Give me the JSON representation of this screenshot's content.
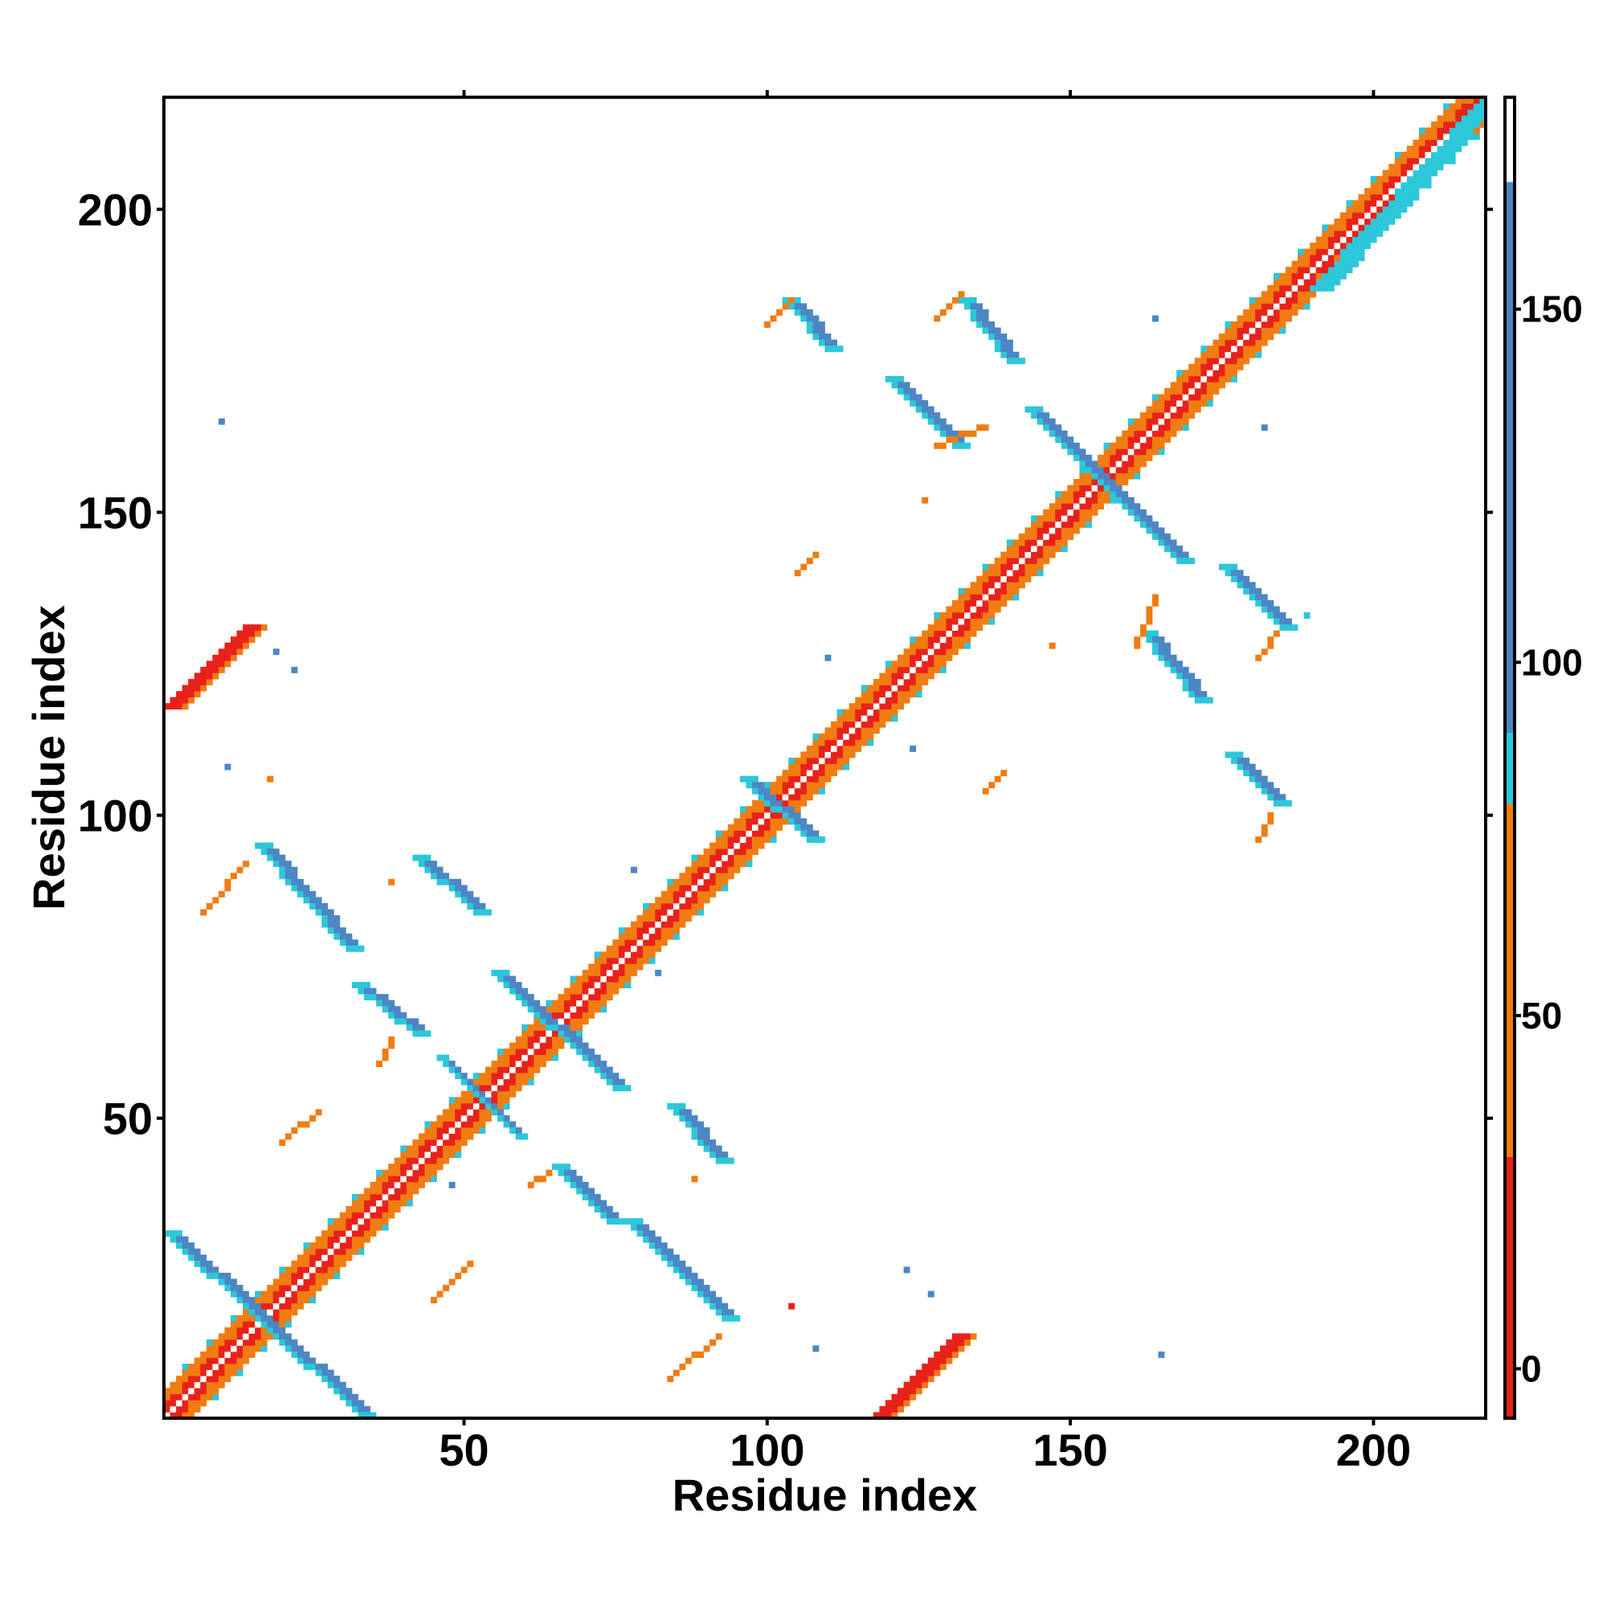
{
  "chart_data": {
    "type": "heatmap",
    "title": "",
    "xlabel": "Residue index",
    "ylabel": "Residue index",
    "xlim": [
      1,
      218
    ],
    "ylim": [
      1,
      218
    ],
    "x_ticks": [
      "50",
      "100",
      "150",
      "200"
    ],
    "y_ticks": [
      "50",
      "100",
      "150",
      "200"
    ],
    "x_tick_values": [
      50,
      100,
      150,
      200
    ],
    "y_tick_values": [
      50,
      100,
      150,
      200
    ],
    "colorbar": {
      "range": [
        -7,
        180
      ],
      "ticks": [
        "0",
        "50",
        "100",
        "150"
      ],
      "tick_values": [
        0,
        50,
        100,
        150
      ],
      "segments": [
        {
          "from": -7,
          "to": 30,
          "color": "#e8221a"
        },
        {
          "from": 30,
          "to": 80,
          "color": "#f07c12"
        },
        {
          "from": 80,
          "to": 90,
          "color": "#2cc7d9"
        },
        {
          "from": 90,
          "to": 168,
          "color": "#4d86c4"
        },
        {
          "from": 168,
          "to": 180,
          "color": "#ffffff"
        }
      ]
    },
    "colors": {
      "red": "#e8221a",
      "orange": "#f07c12",
      "cyan": "#2cc7d9",
      "blue": "#4d86c4"
    },
    "features": [
      {
        "kind": "diagonal",
        "from": 1,
        "to": 218
      },
      {
        "kind": "band",
        "x1": 1,
        "y1": 31,
        "x2": 33,
        "y2": 1,
        "color": "blue",
        "width": 3
      },
      {
        "kind": "band",
        "x1": 16,
        "y1": 95,
        "x2": 31,
        "y2": 78,
        "color": "blue",
        "width": 3
      },
      {
        "kind": "band",
        "x1": 32,
        "y1": 72,
        "x2": 42,
        "y2": 64,
        "color": "blue",
        "width": 3
      },
      {
        "kind": "band",
        "x1": 42,
        "y1": 93,
        "x2": 52,
        "y2": 84,
        "color": "blue",
        "width": 3
      },
      {
        "kind": "band",
        "x1": 46,
        "y1": 60,
        "x2": 59,
        "y2": 47,
        "color": "blue",
        "width": 2
      },
      {
        "kind": "band",
        "x1": 55,
        "y1": 74,
        "x2": 75,
        "y2": 55,
        "color": "blue",
        "width": 3
      },
      {
        "kind": "band",
        "x1": 65,
        "y1": 42,
        "x2": 74,
        "y2": 33,
        "color": "blue",
        "width": 3
      },
      {
        "kind": "band",
        "x1": 77,
        "y1": 33,
        "x2": 93,
        "y2": 17,
        "color": "blue",
        "width": 3
      },
      {
        "kind": "band",
        "x1": 84,
        "y1": 52,
        "x2": 92,
        "y2": 43,
        "color": "blue",
        "width": 3
      },
      {
        "kind": "band",
        "x1": 96,
        "y1": 106,
        "x2": 107,
        "y2": 96,
        "color": "blue",
        "width": 3
      },
      {
        "kind": "band",
        "x1": 103,
        "y1": 185,
        "x2": 110,
        "y2": 177,
        "color": "blue",
        "width": 3
      },
      {
        "kind": "band",
        "x1": 120,
        "y1": 172,
        "x2": 131,
        "y2": 161,
        "color": "blue",
        "width": 3
      },
      {
        "kind": "band",
        "x1": 132,
        "y1": 185,
        "x2": 140,
        "y2": 175,
        "color": "blue",
        "width": 3
      },
      {
        "kind": "band",
        "x1": 143,
        "y1": 167,
        "x2": 168,
        "y2": 142,
        "color": "blue",
        "width": 3
      },
      {
        "kind": "band",
        "x1": 162,
        "y1": 130,
        "x2": 171,
        "y2": 119,
        "color": "blue",
        "width": 3
      },
      {
        "kind": "band",
        "x1": 175,
        "y1": 141,
        "x2": 185,
        "y2": 131,
        "color": "blue",
        "width": 3
      },
      {
        "kind": "band",
        "x1": 176,
        "y1": 110,
        "x2": 184,
        "y2": 102,
        "color": "blue",
        "width": 3
      },
      {
        "kind": "band",
        "x1": 1,
        "y1": 118,
        "x2": 14,
        "y2": 131,
        "color": "red",
        "width": 4
      },
      {
        "kind": "band",
        "x1": 118,
        "y1": 1,
        "x2": 131,
        "y2": 14,
        "color": "red",
        "width": 4
      },
      {
        "kind": "band",
        "x1": 190,
        "y1": 187,
        "x2": 218,
        "y2": 218,
        "color": "cyan",
        "width": 4
      },
      {
        "kind": "line",
        "x1": 7,
        "y1": 84,
        "x2": 14,
        "y2": 92,
        "color": "red"
      },
      {
        "kind": "line",
        "x1": 20,
        "y1": 46,
        "x2": 26,
        "y2": 51,
        "color": "red"
      },
      {
        "kind": "line",
        "x1": 45,
        "y1": 20,
        "x2": 51,
        "y2": 26,
        "color": "red"
      },
      {
        "kind": "line",
        "x1": 84,
        "y1": 7,
        "x2": 92,
        "y2": 14,
        "color": "red"
      },
      {
        "kind": "line",
        "x1": 128,
        "y1": 161,
        "x2": 136,
        "y2": 164,
        "color": "orange"
      },
      {
        "kind": "line",
        "x1": 161,
        "y1": 128,
        "x2": 164,
        "y2": 136,
        "color": "red"
      },
      {
        "kind": "line",
        "x1": 105,
        "y1": 140,
        "x2": 108,
        "y2": 143,
        "color": "orange"
      },
      {
        "kind": "line",
        "x1": 136,
        "y1": 104,
        "x2": 139,
        "y2": 107,
        "color": "orange"
      },
      {
        "kind": "line",
        "x1": 61,
        "y1": 39,
        "x2": 64,
        "y2": 41,
        "color": "orange"
      },
      {
        "kind": "line",
        "x1": 36,
        "y1": 59,
        "x2": 38,
        "y2": 63,
        "color": "orange"
      },
      {
        "kind": "line",
        "x1": 100,
        "y1": 181,
        "x2": 104,
        "y2": 185,
        "color": "orange"
      },
      {
        "kind": "line",
        "x1": 181,
        "y1": 96,
        "x2": 183,
        "y2": 100,
        "color": "orange"
      },
      {
        "kind": "line",
        "x1": 181,
        "y1": 126,
        "x2": 184,
        "y2": 130,
        "color": "red"
      },
      {
        "kind": "line",
        "x1": 128,
        "y1": 182,
        "x2": 132,
        "y2": 186,
        "color": "red"
      }
    ],
    "dots": [
      {
        "x": 10,
        "y": 165,
        "color": "blue"
      },
      {
        "x": 19,
        "y": 127,
        "color": "blue"
      },
      {
        "x": 22,
        "y": 124,
        "color": "blue"
      },
      {
        "x": 11,
        "y": 108,
        "color": "blue"
      },
      {
        "x": 18,
        "y": 106,
        "color": "orange"
      },
      {
        "x": 38,
        "y": 89,
        "color": "orange"
      },
      {
        "x": 48,
        "y": 39,
        "color": "blue"
      },
      {
        "x": 82,
        "y": 74,
        "color": "blue"
      },
      {
        "x": 78,
        "y": 91,
        "color": "blue"
      },
      {
        "x": 88,
        "y": 40,
        "color": "orange"
      },
      {
        "x": 104,
        "y": 19,
        "color": "red"
      },
      {
        "x": 108,
        "y": 12,
        "color": "blue"
      },
      {
        "x": 110,
        "y": 126,
        "color": "blue"
      },
      {
        "x": 124,
        "y": 111,
        "color": "blue"
      },
      {
        "x": 126,
        "y": 152,
        "color": "orange"
      },
      {
        "x": 147,
        "y": 128,
        "color": "orange"
      },
      {
        "x": 165,
        "y": 11,
        "color": "blue"
      },
      {
        "x": 164,
        "y": 182,
        "color": "blue"
      },
      {
        "x": 182,
        "y": 164,
        "color": "blue"
      },
      {
        "x": 189,
        "y": 133,
        "color": "cyan"
      },
      {
        "x": 123,
        "y": 25,
        "color": "blue"
      },
      {
        "x": 127,
        "y": 21,
        "color": "blue"
      }
    ]
  }
}
